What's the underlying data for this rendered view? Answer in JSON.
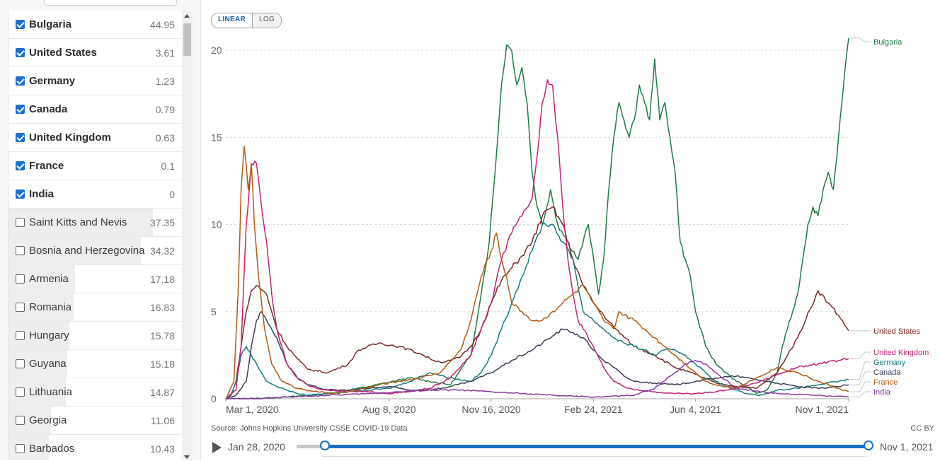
{
  "sidebar": {
    "rows": [
      {
        "name": "Bulgaria",
        "value": "44.95",
        "checked": true
      },
      {
        "name": "United States",
        "value": "3.61",
        "checked": true
      },
      {
        "name": "Germany",
        "value": "1.23",
        "checked": true
      },
      {
        "name": "Canada",
        "value": "0.79",
        "checked": true
      },
      {
        "name": "United Kingdom",
        "value": "0.63",
        "checked": true
      },
      {
        "name": "France",
        "value": "0.1",
        "checked": true
      },
      {
        "name": "India",
        "value": "0",
        "checked": true
      },
      {
        "name": "Saint Kitts and Nevis",
        "value": "37.35",
        "checked": false
      },
      {
        "name": "Bosnia and Herzegovina",
        "value": "34.32",
        "checked": false
      },
      {
        "name": "Armenia",
        "value": "17.18",
        "checked": false
      },
      {
        "name": "Romania",
        "value": "16.83",
        "checked": false
      },
      {
        "name": "Hungary",
        "value": "15.78",
        "checked": false
      },
      {
        "name": "Guyana",
        "value": "15.18",
        "checked": false
      },
      {
        "name": "Lithuania",
        "value": "14.87",
        "checked": false
      },
      {
        "name": "Georgia",
        "value": "11.06",
        "checked": false
      },
      {
        "name": "Barbados",
        "value": "10.43",
        "checked": false
      }
    ]
  },
  "toggle": {
    "linear": "LINEAR",
    "log": "LOG",
    "selected": "LINEAR"
  },
  "footer": {
    "source": "Source: Johns Hopkins University CSSE COVID-19 Data",
    "license": "CC BY",
    "start_date": "Jan 28, 2020",
    "end_date": "Nov 1, 2021"
  },
  "chart_data": {
    "type": "line",
    "ylim": [
      0,
      21
    ],
    "yticks": [
      0,
      5,
      10,
      15,
      20
    ],
    "xlim": [
      0,
      610
    ],
    "xticks": [
      {
        "label": "Mar 1, 2020",
        "day": 0
      },
      {
        "label": "Aug 8, 2020",
        "day": 160
      },
      {
        "label": "Nov 16, 2020",
        "day": 260
      },
      {
        "label": "Feb 24, 2021",
        "day": 360
      },
      {
        "label": "Jun 4, 2021",
        "day": 460
      },
      {
        "label": "Nov 1, 2021",
        "day": 610
      }
    ],
    "x_unit": "days since Mar 1, 2020",
    "series": [
      {
        "name": "Bulgaria",
        "color": "#1e7a45",
        "x": [
          0,
          20,
          60,
          100,
          140,
          180,
          220,
          240,
          250,
          258,
          265,
          270,
          275,
          280,
          285,
          290,
          295,
          300,
          305,
          310,
          318,
          325,
          335,
          345,
          355,
          365,
          370,
          375,
          380,
          385,
          390,
          395,
          400,
          405,
          410,
          415,
          420,
          425,
          430,
          435,
          440,
          445,
          450,
          455,
          460,
          470,
          480,
          490,
          500,
          510,
          520,
          530,
          540,
          545,
          550,
          555,
          560,
          565,
          570,
          575,
          580,
          585,
          590,
          595,
          600,
          605,
          610
        ],
        "y": [
          0,
          0,
          0.1,
          0.3,
          0.7,
          1.2,
          0.8,
          2.5,
          6,
          9,
          14,
          18,
          20.3,
          20,
          18,
          19,
          17,
          13,
          11,
          10,
          12,
          10,
          9,
          8,
          10,
          6,
          8,
          12,
          15,
          17,
          16,
          15,
          16,
          18,
          17,
          16,
          19.5,
          16,
          17,
          15,
          13,
          9,
          8,
          7,
          5,
          3,
          2,
          1.5,
          1,
          0.7,
          0.3,
          0.5,
          1.5,
          3,
          4,
          5,
          6,
          8,
          10,
          11,
          10.5,
          12,
          13,
          12,
          15,
          18,
          20.7
        ]
      },
      {
        "name": "United States",
        "color": "#7a2a2a",
        "x": [
          0,
          5,
          10,
          15,
          20,
          25,
          30,
          40,
          50,
          60,
          70,
          80,
          100,
          120,
          130,
          150,
          170,
          190,
          200,
          210,
          220,
          230,
          240,
          250,
          260,
          270,
          280,
          290,
          300,
          310,
          320,
          330,
          340,
          350,
          360,
          370,
          380,
          400,
          420,
          440,
          460,
          480,
          500,
          520,
          540,
          560,
          580,
          590,
          600,
          610
        ],
        "y": [
          0,
          0.2,
          1,
          3,
          5,
          6.2,
          6.5,
          6,
          4,
          3,
          2.3,
          1.7,
          1.5,
          2,
          2.8,
          3.2,
          3,
          2.6,
          2.3,
          2.1,
          2.2,
          2.4,
          3,
          4,
          5.5,
          6.8,
          7.5,
          8.2,
          9,
          10.5,
          11,
          10,
          8,
          6.5,
          5.5,
          4.8,
          4.1,
          3,
          2.5,
          1.8,
          1.4,
          0.9,
          0.7,
          0.6,
          1.5,
          3.5,
          6.2,
          5.5,
          4.8,
          3.9
        ]
      },
      {
        "name": "Germany",
        "color": "#167d7d",
        "x": [
          0,
          5,
          10,
          15,
          20,
          25,
          30,
          35,
          40,
          50,
          60,
          70,
          80,
          100,
          120,
          140,
          160,
          180,
          200,
          220,
          240,
          250,
          260,
          270,
          280,
          290,
          300,
          310,
          320,
          330,
          340,
          350,
          360,
          370,
          380,
          390,
          400,
          410,
          420,
          430,
          440,
          450,
          460,
          470,
          480,
          490,
          500,
          510,
          520,
          530,
          540,
          560,
          580,
          600,
          610
        ],
        "y": [
          0,
          0.2,
          1,
          2.5,
          3,
          2.5,
          2,
          1.5,
          1,
          0.7,
          0.5,
          0.3,
          0.2,
          0.3,
          0.4,
          0.5,
          0.6,
          1,
          1.5,
          1.2,
          1,
          1.5,
          2.5,
          4,
          5.5,
          7,
          8.5,
          10,
          10,
          9,
          8,
          5,
          4.5,
          4,
          3.5,
          3.2,
          3,
          2.8,
          2.5,
          2.8,
          2.8,
          2.5,
          2,
          1.5,
          1,
          0.7,
          0.5,
          0.3,
          0.2,
          0.3,
          0.5,
          0.6,
          0.8,
          1,
          1.1
        ]
      },
      {
        "name": "Canada",
        "color": "#3a3f55",
        "x": [
          0,
          10,
          20,
          25,
          30,
          35,
          40,
          50,
          60,
          70,
          80,
          100,
          120,
          140,
          160,
          180,
          200,
          220,
          240,
          260,
          280,
          300,
          320,
          330,
          340,
          350,
          360,
          370,
          380,
          390,
          400,
          420,
          440,
          460,
          480,
          500,
          520,
          540,
          560,
          580,
          600,
          610
        ],
        "y": [
          0,
          0.2,
          1,
          3,
          4.5,
          5,
          4.5,
          3.5,
          2,
          1.2,
          0.8,
          0.5,
          0.5,
          0.6,
          0.7,
          0.5,
          0.5,
          0.7,
          1,
          1.5,
          2.2,
          2.8,
          3.6,
          4,
          3.8,
          3.5,
          2.8,
          2.2,
          1.8,
          1.3,
          1,
          0.9,
          0.8,
          1,
          1.2,
          1.3,
          1.1,
          0.9,
          0.7,
          0.6,
          0.7,
          0.8
        ]
      },
      {
        "name": "United Kingdom",
        "color": "#c0237a",
        "x": [
          0,
          10,
          15,
          20,
          25,
          30,
          35,
          40,
          45,
          50,
          55,
          60,
          70,
          80,
          90,
          100,
          120,
          140,
          160,
          180,
          200,
          220,
          240,
          260,
          270,
          280,
          290,
          300,
          305,
          310,
          315,
          320,
          325,
          330,
          335,
          340,
          345,
          350,
          360,
          370,
          380,
          390,
          400,
          420,
          440,
          460,
          480,
          500,
          520,
          540,
          560,
          580,
          600,
          610
        ],
        "y": [
          0,
          0.5,
          3,
          10,
          13.5,
          13.5,
          11,
          9,
          6,
          4,
          3,
          2,
          1.2,
          0.8,
          0.6,
          0.5,
          0.4,
          0.4,
          0.3,
          0.4,
          0.6,
          1.2,
          2.5,
          5.5,
          8,
          9.5,
          10.5,
          11.5,
          14,
          17,
          18.3,
          18,
          15,
          11,
          8,
          6,
          4.5,
          4,
          3,
          1.8,
          1,
          0.7,
          0.5,
          0.4,
          0.3,
          0.3,
          0.4,
          0.6,
          0.9,
          1.4,
          1.8,
          2,
          2.2,
          2.3
        ]
      },
      {
        "name": "France",
        "color": "#b25a12",
        "x": [
          0,
          8,
          12,
          15,
          18,
          22,
          25,
          28,
          32,
          38,
          45,
          55,
          70,
          90,
          110,
          130,
          150,
          170,
          190,
          210,
          230,
          240,
          250,
          260,
          265,
          270,
          275,
          280,
          290,
          300,
          310,
          320,
          330,
          340,
          350,
          360,
          370,
          380,
          385,
          390,
          400,
          410,
          420,
          430,
          440,
          450,
          460,
          470,
          480,
          500,
          520,
          540,
          560,
          580,
          600,
          610
        ],
        "y": [
          0,
          1,
          6,
          12,
          14.5,
          12,
          13.5,
          10,
          7,
          4,
          2,
          1,
          0.6,
          0.4,
          0.3,
          0.5,
          0.8,
          1,
          1.2,
          1.5,
          2.8,
          4.5,
          7,
          8.5,
          9.5,
          8,
          7,
          5.5,
          5,
          4.5,
          4.5,
          5,
          5.5,
          6,
          6.5,
          5.5,
          4.5,
          4,
          5,
          4.8,
          4.5,
          4,
          3.5,
          3,
          2.5,
          2,
          1.5,
          1,
          0.8,
          0.6,
          1.2,
          1.8,
          1.5,
          1,
          0.6,
          0.4
        ]
      },
      {
        "name": "India",
        "color": "#8a3a9e",
        "x": [
          0,
          30,
          60,
          100,
          140,
          170,
          200,
          230,
          260,
          290,
          320,
          360,
          400,
          420,
          440,
          450,
          460,
          470,
          480,
          500,
          540,
          580,
          610
        ],
        "y": [
          0,
          0,
          0.1,
          0.2,
          0.3,
          0.4,
          0.5,
          0.5,
          0.4,
          0.3,
          0.2,
          0.1,
          0.2,
          0.6,
          1.5,
          2,
          2.2,
          2,
          1.5,
          0.6,
          0.3,
          0.2,
          0.1
        ]
      }
    ],
    "legend": [
      {
        "name": "Bulgaria",
        "color": "#1e7a45"
      },
      {
        "name": "United States",
        "color": "#7a2a2a"
      },
      {
        "name": "United Kingdom",
        "color": "#c0237a"
      },
      {
        "name": "Germany",
        "color": "#167d7d"
      },
      {
        "name": "Canada",
        "color": "#3a3f55"
      },
      {
        "name": "France",
        "color": "#b25a12"
      },
      {
        "name": "India",
        "color": "#8a3a9e"
      }
    ]
  }
}
